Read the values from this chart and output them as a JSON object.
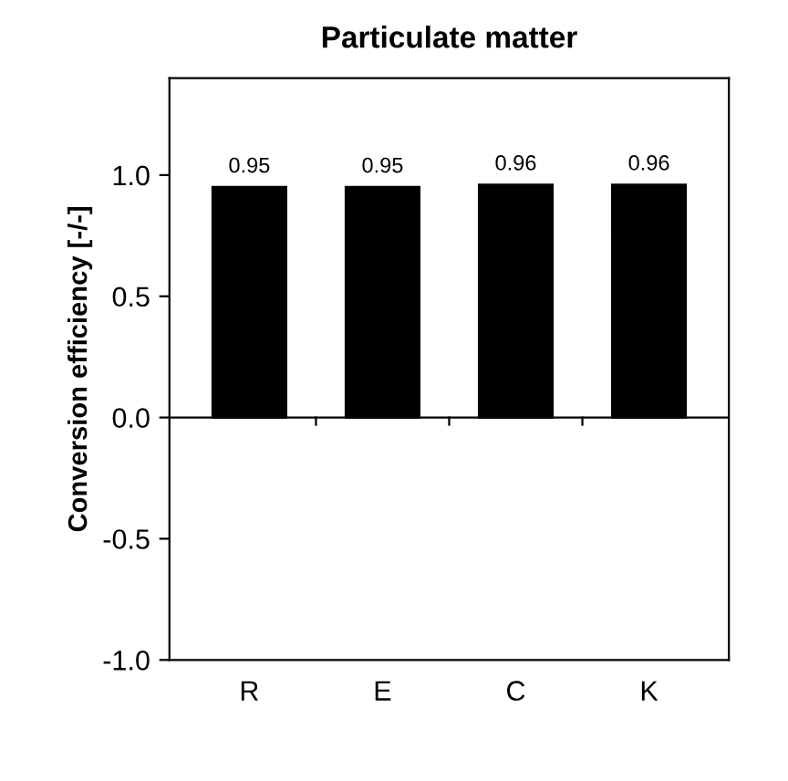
{
  "chart_data": {
    "type": "bar",
    "title": "Particulate matter",
    "ylabel": "Conversion efficiency [-/-]",
    "categories": [
      "R",
      "E",
      "C",
      "K"
    ],
    "values": [
      0.95,
      0.95,
      0.96,
      0.96
    ],
    "color": "#000000",
    "data_labels": true,
    "ylim": [
      -1.0,
      1.4
    ],
    "yticks": [
      {
        "value": -1.0,
        "label": "-1.0"
      },
      {
        "value": -0.5,
        "label": "-0.5"
      },
      {
        "value": 0.0,
        "label": "0.0"
      },
      {
        "value": 0.5,
        "label": "0.5"
      },
      {
        "value": 1.0,
        "label": "1.0"
      }
    ],
    "ref_lines": [
      {
        "axis": "y",
        "value": 0,
        "color": "#000000"
      }
    ],
    "grid": false,
    "legend": false
  }
}
